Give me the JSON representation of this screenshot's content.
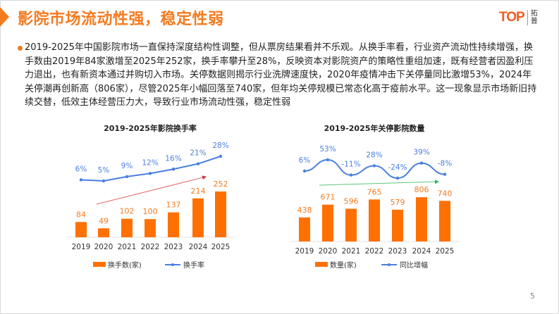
{
  "header": {
    "title": "影院市场流动性强，稳定性弱",
    "logo_text": "TOP",
    "logo_cn": "拓普"
  },
  "body": {
    "paragraph": "2019-2025年中国影院市场一直保持深度结构性调整，但从票房结果看并不乐观。从换手率看，行业资产流动性持续增强，换手数由2019年84家激增至2025年252家，换手率攀升至28%，反映资本对影院资产的策略性重组加速，既有经营者因盈利压力退出，也有新资本通过并购切入市场。关停数据则揭示行业洗牌速度快，2020年疫情冲击下关停量同比激增53%，2024年关停潮再创新高（806家），尽管2025年小幅回落至740家，但年均关停规模已常态化高于疫前水平。这一现象显示市场新旧持续交替，低效主体经营压力大，导致行业市场流动性强，稳定性弱"
  },
  "page_number": "5",
  "colors": {
    "accent": "#f47b20",
    "bar": "#ff7000",
    "line": "#4a7fe0"
  },
  "chart_data": [
    {
      "type": "bar+line",
      "title": "2019-2025年影院换手率",
      "categories": [
        "2019",
        "2020",
        "2021",
        "2022",
        "2023",
        "2024",
        "2025"
      ],
      "series": [
        {
          "name": "换手数(家)",
          "type": "bar",
          "values": [
            84,
            49,
            102,
            100,
            137,
            214,
            252
          ]
        },
        {
          "name": "换手率",
          "type": "line",
          "values": [
            6,
            5,
            9,
            12,
            16,
            21,
            28
          ],
          "unit": "%"
        }
      ],
      "trend_arrow": "red"
    },
    {
      "type": "bar+line",
      "title": "2019-2025年关停影院数量",
      "categories": [
        "2019",
        "2020",
        "2021",
        "2022",
        "2023",
        "2024",
        "2025"
      ],
      "series": [
        {
          "name": "数量(家)",
          "type": "bar",
          "values": [
            438,
            671,
            596,
            765,
            579,
            806,
            740
          ]
        },
        {
          "name": "同比增幅",
          "type": "line",
          "values": [
            6,
            53,
            -11,
            28,
            -24,
            39,
            -8
          ],
          "unit": "%"
        }
      ],
      "trend_arrow": "green"
    }
  ]
}
